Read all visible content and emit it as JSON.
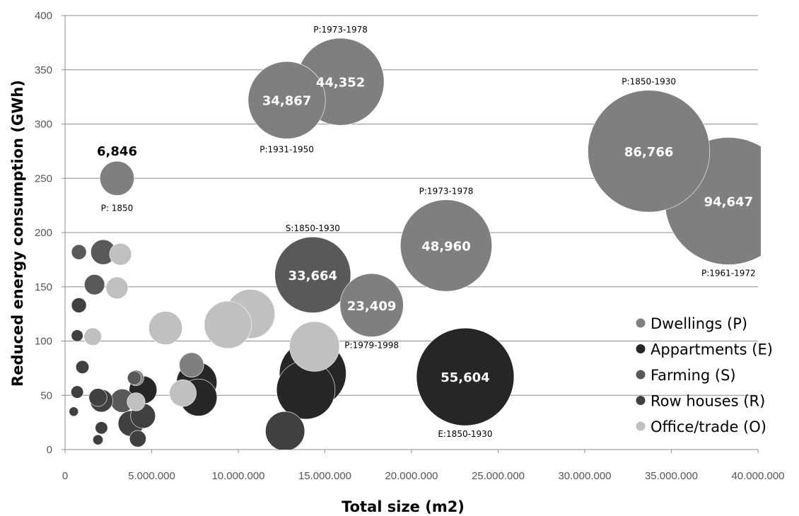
{
  "chart_data": {
    "type": "bubble",
    "xlabel": "Total size (m2)",
    "ylabel": "Reduced energy consumption (GWh)",
    "xlim": [
      0,
      40000000
    ],
    "ylim": [
      0,
      400
    ],
    "x_ticks": [
      "0",
      "5.000.000",
      "10.000.000",
      "15.000.000",
      "20.000.000",
      "25.000.000",
      "30.000.000",
      "35.000.000",
      "40.000.000"
    ],
    "y_ticks": [
      "0",
      "50",
      "100",
      "150",
      "200",
      "250",
      "300",
      "350",
      "400"
    ],
    "grid": "horizontal",
    "legend_position": "bottom-right",
    "series": [
      {
        "name": "Dwellings (P)",
        "color": "#7f7f7f",
        "points": [
          {
            "x": 3000000,
            "y": 250,
            "size": 6846,
            "label": "6,846",
            "period": "P: 1850"
          },
          {
            "x": 12800000,
            "y": 322,
            "size": 34867,
            "label": "34,867",
            "period": "P:1931-1950"
          },
          {
            "x": 15900000,
            "y": 339,
            "size": 44352,
            "label": "44,352",
            "period": "P:1973-1978"
          },
          {
            "x": 22000000,
            "y": 188,
            "size": 48960,
            "label": "48,960",
            "period": "P:1973-1978"
          },
          {
            "x": 17700000,
            "y": 133,
            "size": 23409,
            "label": "23,409",
            "period": "P:1979-1998"
          },
          {
            "x": 33700000,
            "y": 275,
            "size": 86766,
            "label": "86,766",
            "period": "P:1850-1930"
          },
          {
            "x": 38300000,
            "y": 229,
            "size": 94647,
            "label": "94,647",
            "period": "P:1961-1972"
          },
          {
            "x": 7300000,
            "y": 78,
            "size": 3500
          },
          {
            "x": 4100000,
            "y": 66,
            "size": 1400
          }
        ]
      },
      {
        "name": "Appartments (E)",
        "color": "#262626",
        "points": [
          {
            "x": 23100000,
            "y": 67,
            "size": 55604,
            "label": "55,604",
            "period": "E:1850-1930"
          },
          {
            "x": 14300000,
            "y": 70,
            "size": 26000
          },
          {
            "x": 13900000,
            "y": 55,
            "size": 20000
          },
          {
            "x": 7600000,
            "y": 62,
            "size": 9500
          },
          {
            "x": 7700000,
            "y": 48,
            "size": 8000
          },
          {
            "x": 4500000,
            "y": 55,
            "size": 4500
          }
        ]
      },
      {
        "name": "Farming (S)",
        "color": "#595959",
        "points": [
          {
            "x": 14300000,
            "y": 161,
            "size": 33664,
            "label": "33,664",
            "period": "S:1850-1930"
          },
          {
            "x": 2200000,
            "y": 182,
            "size": 3600
          },
          {
            "x": 800000,
            "y": 182,
            "size": 1300
          },
          {
            "x": 1700000,
            "y": 152,
            "size": 2400
          },
          {
            "x": 4000000,
            "y": 66,
            "size": 1100
          },
          {
            "x": 3300000,
            "y": 45,
            "size": 3200
          }
        ]
      },
      {
        "name": "Row houses (R)",
        "color": "#404040",
        "points": [
          {
            "x": 800000,
            "y": 133,
            "size": 1300
          },
          {
            "x": 700000,
            "y": 105,
            "size": 800
          },
          {
            "x": 1000000,
            "y": 76,
            "size": 1000
          },
          {
            "x": 700000,
            "y": 53,
            "size": 900
          },
          {
            "x": 500000,
            "y": 35,
            "size": 500
          },
          {
            "x": 2100000,
            "y": 45,
            "size": 3000
          },
          {
            "x": 1900000,
            "y": 48,
            "size": 1900
          },
          {
            "x": 3800000,
            "y": 24,
            "size": 3800
          },
          {
            "x": 4500000,
            "y": 31,
            "size": 3600
          },
          {
            "x": 4200000,
            "y": 10,
            "size": 1600
          },
          {
            "x": 2100000,
            "y": 20,
            "size": 900
          },
          {
            "x": 1900000,
            "y": 9,
            "size": 600
          },
          {
            "x": 12700000,
            "y": 17,
            "size": 9000
          }
        ]
      },
      {
        "name": "Office/trade (O)",
        "color": "#c0c0c0",
        "points": [
          {
            "x": 3200000,
            "y": 180,
            "size": 2800
          },
          {
            "x": 3000000,
            "y": 149,
            "size": 2800
          },
          {
            "x": 1600000,
            "y": 104,
            "size": 1800
          },
          {
            "x": 5800000,
            "y": 112,
            "size": 6500
          },
          {
            "x": 9400000,
            "y": 115,
            "size": 13000
          },
          {
            "x": 10700000,
            "y": 125,
            "size": 14000
          },
          {
            "x": 14400000,
            "y": 95,
            "size": 14500
          },
          {
            "x": 6800000,
            "y": 52,
            "size": 4200
          },
          {
            "x": 4100000,
            "y": 44,
            "size": 1900
          }
        ]
      }
    ]
  }
}
